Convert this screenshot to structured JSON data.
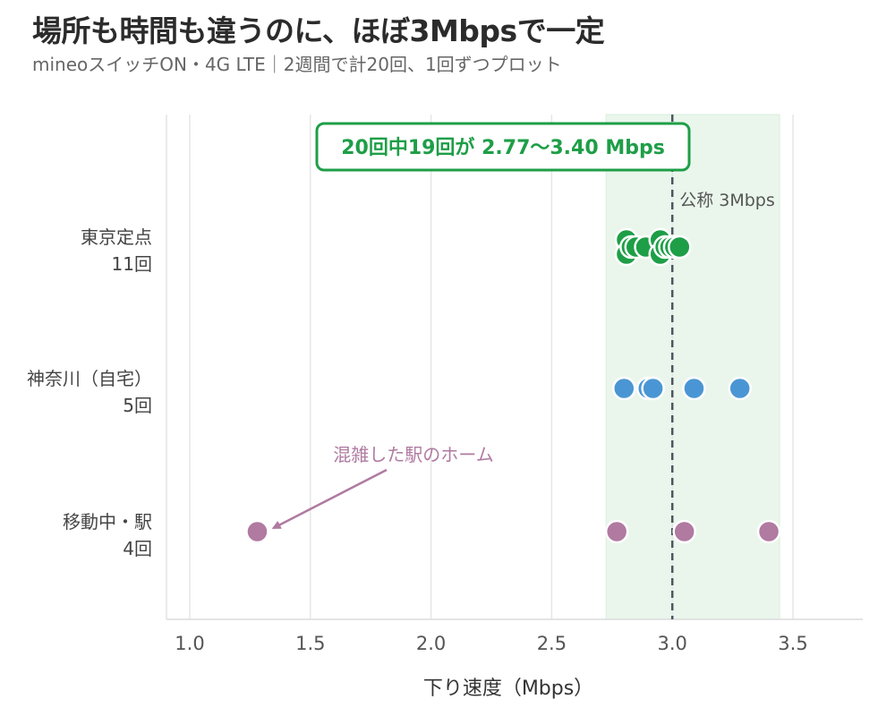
{
  "title": "場所も時間も違うのに、ほぼ3Mbpsで一定",
  "subtitle": "mineoスイッチON・4G LTE｜2週間で計20回、1回ずつプロット",
  "chart_data": {
    "type": "scatter",
    "orientation": "horizontal",
    "title": "場所も時間も違うのに、ほぼ3Mbpsで一定",
    "xlabel": "下り速度（Mbps）",
    "ylabel": "",
    "xlim": [
      0.9,
      3.82
    ],
    "xticks": [
      "1.0",
      "1.5",
      "2.0",
      "2.5",
      "3.0",
      "3.5"
    ],
    "grid": "vertical",
    "band": {
      "from": 2.77,
      "to": 3.4,
      "color": "#eaf6ec"
    },
    "reference_line": {
      "value": 3.0,
      "label": "公称 3Mbps"
    },
    "callout": "20回中19回が 2.77〜3.40 Mbps",
    "annotation": {
      "text": "混雑した駅のホーム",
      "target_x": 1.28,
      "target_category": "移動中・駅"
    },
    "categories": [
      {
        "name": "東京定点",
        "count_label": "11回",
        "color": "#1e9e47",
        "values": [
          2.81,
          2.81,
          2.83,
          2.85,
          2.89,
          2.95,
          2.95,
          2.97,
          2.99,
          3.01,
          3.03
        ]
      },
      {
        "name": "神奈川（自宅）",
        "count_label": "5回",
        "color": "#4a96d4",
        "values": [
          2.8,
          2.9,
          2.92,
          3.09,
          3.28
        ]
      },
      {
        "name": "移動中・駅",
        "count_label": "4回",
        "color": "#b07aa1",
        "values": [
          1.28,
          2.77,
          3.05,
          3.4
        ]
      }
    ]
  }
}
